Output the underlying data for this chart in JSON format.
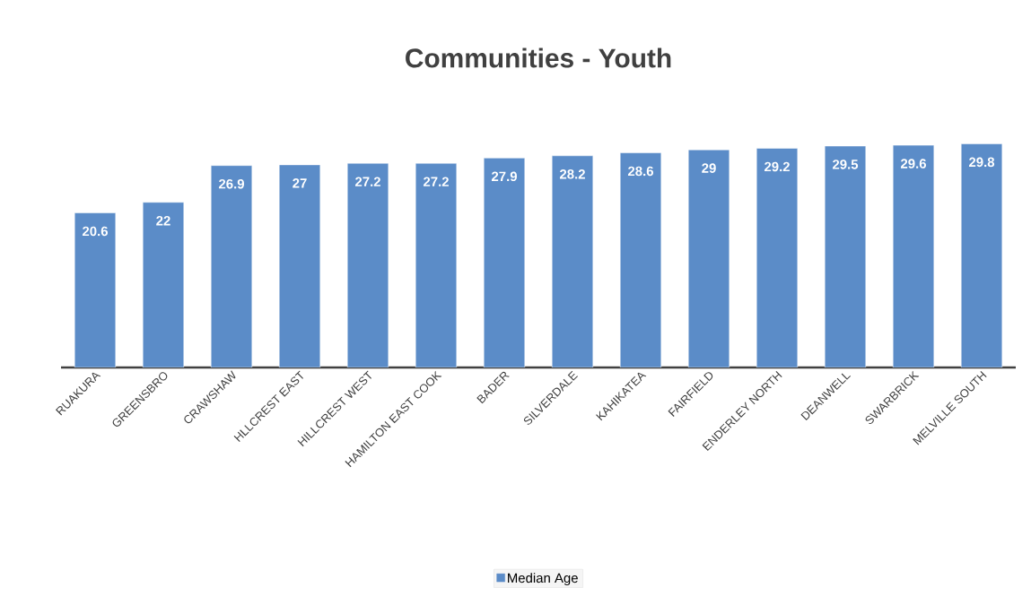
{
  "chart_data": {
    "type": "bar",
    "title": "Communities - Youth",
    "categories": [
      "RUAKURA",
      "GREENSBRO",
      "CRAWSHAW",
      "HLLCREST EAST",
      "HILLCREST WEST",
      "HAMILTON EAST COOK",
      "BADER",
      "SILVERDALE",
      "KAHIKATEA",
      "FAIRFIELD",
      "ENDERLEY NORTH",
      "DEANWELL",
      "SWARBRICK",
      "MELVILLE SOUTH"
    ],
    "series": [
      {
        "name": "Median Age",
        "color": "#5b8cc8",
        "values": [
          20.6,
          22,
          26.9,
          27,
          27.2,
          27.2,
          27.9,
          28.2,
          28.6,
          29,
          29.2,
          29.5,
          29.6,
          29.8
        ]
      }
    ],
    "tick_labels": "x",
    "data_labels": true,
    "legend": "bottom"
  }
}
